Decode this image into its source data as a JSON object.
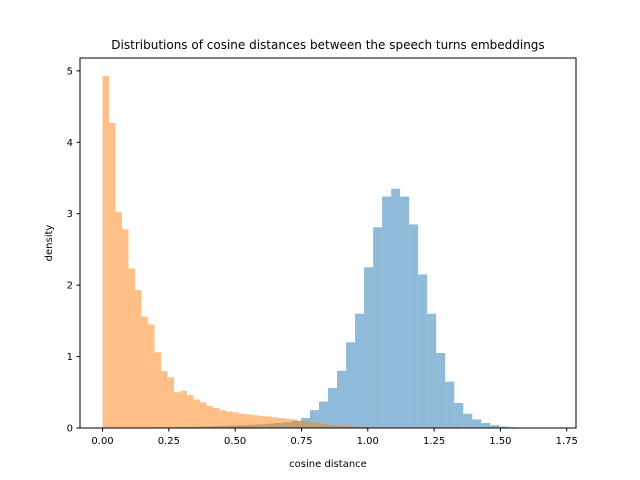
{
  "chart_data": {
    "type": "histogram",
    "title": "Distributions of cosine distances between the speech turns embeddings",
    "xlabel": "cosine distance",
    "ylabel": "density",
    "xlim": [
      -0.085,
      1.785
    ],
    "ylim": [
      0,
      5.18
    ],
    "grid": false,
    "legend": "none",
    "xticks": [
      0.0,
      0.25,
      0.5,
      0.75,
      1.0,
      1.25,
      1.5,
      1.75
    ],
    "xtick_labels": [
      "0.00",
      "0.25",
      "0.50",
      "0.75",
      "1.00",
      "1.25",
      "1.50",
      "1.75"
    ],
    "yticks": [
      0,
      1,
      2,
      3,
      4,
      5
    ],
    "ytick_labels": [
      "0",
      "1",
      "2",
      "3",
      "4",
      "5"
    ],
    "series": [
      {
        "color": "#1f77b4",
        "opacity": 0.5,
        "bin_start": 0.0,
        "bin_width": 0.034,
        "values": [
          0.001,
          0.002,
          0.003,
          0.004,
          0.005,
          0.006,
          0.008,
          0.01,
          0.012,
          0.015,
          0.018,
          0.022,
          0.026,
          0.03,
          0.035,
          0.04,
          0.045,
          0.05,
          0.06,
          0.07,
          0.08,
          0.1,
          0.14,
          0.25,
          0.37,
          0.56,
          0.8,
          1.2,
          1.6,
          2.25,
          2.81,
          3.24,
          3.35,
          3.24,
          2.85,
          2.15,
          1.6,
          1.05,
          0.65,
          0.35,
          0.2,
          0.12,
          0.07,
          0.04,
          0.02,
          0.01,
          0.005,
          0.003,
          0.002,
          0.001
        ]
      },
      {
        "color": "#ff7f0e",
        "opacity": 0.5,
        "bin_start": 0.0,
        "bin_width": 0.0245,
        "values": [
          4.93,
          4.27,
          3.02,
          2.78,
          2.23,
          1.93,
          1.56,
          1.45,
          1.06,
          0.8,
          0.71,
          0.5,
          0.52,
          0.46,
          0.4,
          0.36,
          0.31,
          0.28,
          0.25,
          0.23,
          0.22,
          0.2,
          0.19,
          0.18,
          0.17,
          0.16,
          0.15,
          0.14,
          0.13,
          0.12,
          0.1,
          0.09,
          0.07,
          0.06,
          0.05,
          0.04,
          0.03,
          0.025,
          0.02,
          0.015,
          0.01,
          0.008,
          0.006,
          0.004,
          0.003,
          0.002,
          0.001,
          0.001,
          0.001,
          0.001
        ]
      }
    ]
  }
}
